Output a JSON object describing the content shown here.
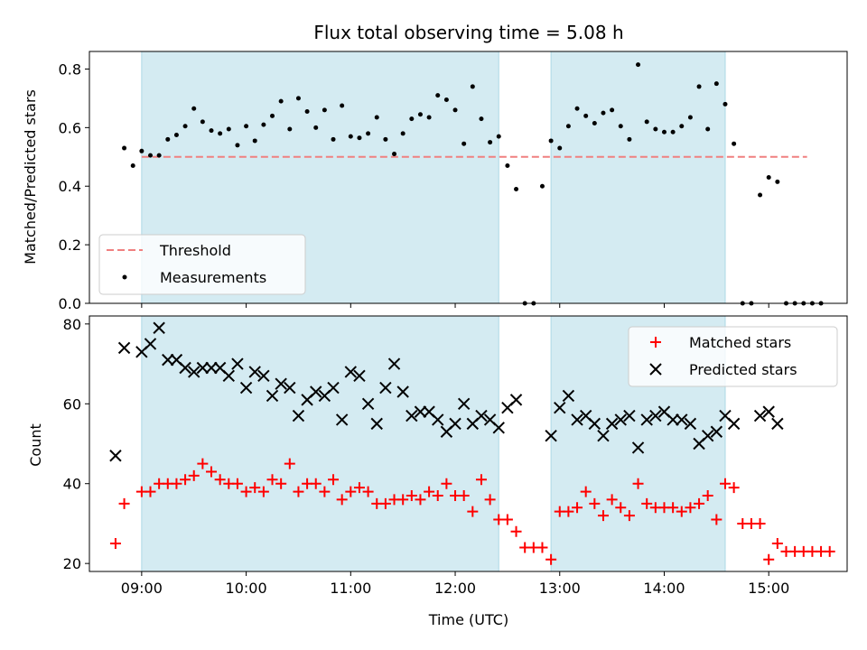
{
  "chart_data": [
    {
      "type": "scatter",
      "title": "Flux total observing time = 5.08 h",
      "xlabel": "",
      "ylabel": "Matched/Predicted stars",
      "xlim": [
        "08:30",
        "15:45"
      ],
      "ylim": [
        0,
        0.86
      ],
      "yticks": [
        0.0,
        0.2,
        0.4,
        0.6,
        0.8
      ],
      "yticklabels": [
        "0.0",
        "0.2",
        "0.4",
        "0.6",
        "0.8"
      ],
      "xticks": [
        "09:00",
        "10:00",
        "11:00",
        "12:00",
        "13:00",
        "14:00",
        "15:00"
      ],
      "shaded_intervals": [
        [
          "09:00",
          "12:25"
        ],
        [
          "12:55",
          "14:35"
        ]
      ],
      "shade_color": "#add8e6",
      "threshold": {
        "value": 0.5,
        "x_range": [
          "09:00",
          "15:22"
        ],
        "color": "#f08080"
      },
      "legend": {
        "placement": "lower-left",
        "entries": [
          "Threshold",
          "Measurements"
        ]
      },
      "series": [
        {
          "name": "Measurements",
          "color": "#000000",
          "points": [
            [
              "08:50",
              0.53
            ],
            [
              "08:55",
              0.47
            ],
            [
              "09:00",
              0.52
            ],
            [
              "09:05",
              0.505
            ],
            [
              "09:10",
              0.505
            ],
            [
              "09:15",
              0.56
            ],
            [
              "09:20",
              0.575
            ],
            [
              "09:25",
              0.605
            ],
            [
              "09:30",
              0.665
            ],
            [
              "09:35",
              0.62
            ],
            [
              "09:40",
              0.59
            ],
            [
              "09:45",
              0.58
            ],
            [
              "09:50",
              0.595
            ],
            [
              "09:55",
              0.54
            ],
            [
              "10:00",
              0.605
            ],
            [
              "10:05",
              0.555
            ],
            [
              "10:10",
              0.61
            ],
            [
              "10:15",
              0.64
            ],
            [
              "10:20",
              0.69
            ],
            [
              "10:25",
              0.595
            ],
            [
              "10:30",
              0.7
            ],
            [
              "10:35",
              0.655
            ],
            [
              "10:40",
              0.6
            ],
            [
              "10:45",
              0.66
            ],
            [
              "10:50",
              0.56
            ],
            [
              "10:55",
              0.675
            ],
            [
              "11:00",
              0.57
            ],
            [
              "11:05",
              0.565
            ],
            [
              "11:10",
              0.58
            ],
            [
              "11:15",
              0.635
            ],
            [
              "11:20",
              0.56
            ],
            [
              "11:25",
              0.51
            ],
            [
              "11:30",
              0.58
            ],
            [
              "11:35",
              0.63
            ],
            [
              "11:40",
              0.645
            ],
            [
              "11:45",
              0.635
            ],
            [
              "11:50",
              0.71
            ],
            [
              "11:55",
              0.695
            ],
            [
              "12:00",
              0.66
            ],
            [
              "12:05",
              0.545
            ],
            [
              "12:10",
              0.74
            ],
            [
              "12:15",
              0.63
            ],
            [
              "12:20",
              0.55
            ],
            [
              "12:25",
              0.57
            ],
            [
              "12:30",
              0.47
            ],
            [
              "12:35",
              0.39
            ],
            [
              "12:40",
              0.0
            ],
            [
              "12:45",
              0.0
            ],
            [
              "12:50",
              0.4
            ],
            [
              "12:55",
              0.555
            ],
            [
              "13:00",
              0.53
            ],
            [
              "13:05",
              0.605
            ],
            [
              "13:10",
              0.665
            ],
            [
              "13:15",
              0.64
            ],
            [
              "13:20",
              0.615
            ],
            [
              "13:25",
              0.65
            ],
            [
              "13:30",
              0.66
            ],
            [
              "13:35",
              0.605
            ],
            [
              "13:40",
              0.56
            ],
            [
              "13:45",
              0.815
            ],
            [
              "13:50",
              0.62
            ],
            [
              "13:55",
              0.595
            ],
            [
              "14:00",
              0.585
            ],
            [
              "14:05",
              0.585
            ],
            [
              "14:10",
              0.605
            ],
            [
              "14:15",
              0.635
            ],
            [
              "14:20",
              0.74
            ],
            [
              "14:25",
              0.595
            ],
            [
              "14:30",
              0.75
            ],
            [
              "14:35",
              0.68
            ],
            [
              "14:40",
              0.545
            ],
            [
              "14:45",
              0.0
            ],
            [
              "14:50",
              0.0
            ],
            [
              "14:55",
              0.37
            ],
            [
              "15:00",
              0.43
            ],
            [
              "15:05",
              0.415
            ],
            [
              "15:10",
              0.0
            ],
            [
              "15:15",
              0.0
            ],
            [
              "15:20",
              0.0
            ],
            [
              "15:25",
              0.0
            ],
            [
              "15:30",
              0.0
            ]
          ]
        }
      ]
    },
    {
      "type": "scatter",
      "title": "",
      "xlabel": "Time (UTC)",
      "ylabel": "Count",
      "xlim": [
        "08:30",
        "15:45"
      ],
      "ylim": [
        18,
        82
      ],
      "yticks": [
        20,
        40,
        60,
        80
      ],
      "yticklabels": [
        "20",
        "40",
        "60",
        "80"
      ],
      "xticks": [
        "09:00",
        "10:00",
        "11:00",
        "12:00",
        "13:00",
        "14:00",
        "15:00"
      ],
      "xticklabels": [
        "09:00",
        "10:00",
        "11:00",
        "12:00",
        "13:00",
        "14:00",
        "15:00"
      ],
      "shaded_intervals": [
        [
          "09:00",
          "12:25"
        ],
        [
          "12:55",
          "14:35"
        ]
      ],
      "shade_color": "#add8e6",
      "legend": {
        "placement": "top-right",
        "entries": [
          "Matched stars",
          "Predicted stars"
        ]
      },
      "series": [
        {
          "name": "Matched stars",
          "marker": "plus",
          "color": "#ff0000",
          "points": [
            [
              "08:45",
              25
            ],
            [
              "08:50",
              35
            ],
            [
              "09:00",
              38
            ],
            [
              "09:05",
              38
            ],
            [
              "09:10",
              40
            ],
            [
              "09:15",
              40
            ],
            [
              "09:20",
              40
            ],
            [
              "09:25",
              41
            ],
            [
              "09:30",
              42
            ],
            [
              "09:35",
              45
            ],
            [
              "09:40",
              43
            ],
            [
              "09:45",
              41
            ],
            [
              "09:50",
              40
            ],
            [
              "09:55",
              40
            ],
            [
              "10:00",
              38
            ],
            [
              "10:05",
              39
            ],
            [
              "10:10",
              38
            ],
            [
              "10:15",
              41
            ],
            [
              "10:20",
              40
            ],
            [
              "10:25",
              45
            ],
            [
              "10:30",
              38
            ],
            [
              "10:35",
              40
            ],
            [
              "10:40",
              40
            ],
            [
              "10:45",
              38
            ],
            [
              "10:50",
              41
            ],
            [
              "10:55",
              36
            ],
            [
              "11:00",
              38
            ],
            [
              "11:05",
              39
            ],
            [
              "11:10",
              38
            ],
            [
              "11:15",
              35
            ],
            [
              "11:20",
              35
            ],
            [
              "11:25",
              36
            ],
            [
              "11:30",
              36
            ],
            [
              "11:35",
              37
            ],
            [
              "11:40",
              36
            ],
            [
              "11:45",
              38
            ],
            [
              "11:50",
              37
            ],
            [
              "11:55",
              40
            ],
            [
              "12:00",
              37
            ],
            [
              "12:05",
              37
            ],
            [
              "12:10",
              33
            ],
            [
              "12:15",
              41
            ],
            [
              "12:20",
              36
            ],
            [
              "12:25",
              31
            ],
            [
              "12:30",
              31
            ],
            [
              "12:35",
              28
            ],
            [
              "12:40",
              24
            ],
            [
              "12:45",
              24
            ],
            [
              "12:50",
              24
            ],
            [
              "12:55",
              21
            ],
            [
              "13:00",
              33
            ],
            [
              "13:05",
              33
            ],
            [
              "13:10",
              34
            ],
            [
              "13:15",
              38
            ],
            [
              "13:20",
              35
            ],
            [
              "13:25",
              32
            ],
            [
              "13:30",
              36
            ],
            [
              "13:35",
              34
            ],
            [
              "13:40",
              32
            ],
            [
              "13:45",
              40
            ],
            [
              "13:50",
              35
            ],
            [
              "13:55",
              34
            ],
            [
              "14:00",
              34
            ],
            [
              "14:05",
              34
            ],
            [
              "14:10",
              33
            ],
            [
              "14:15",
              34
            ],
            [
              "14:20",
              35
            ],
            [
              "14:25",
              37
            ],
            [
              "14:30",
              31
            ],
            [
              "14:35",
              40
            ],
            [
              "14:40",
              39
            ],
            [
              "14:45",
              30
            ],
            [
              "14:50",
              30
            ],
            [
              "14:55",
              30
            ],
            [
              "15:00",
              21
            ],
            [
              "15:05",
              25
            ],
            [
              "15:10",
              23
            ],
            [
              "15:15",
              23
            ],
            [
              "15:20",
              23
            ],
            [
              "15:25",
              23
            ],
            [
              "15:30",
              23
            ],
            [
              "15:35",
              23
            ]
          ]
        },
        {
          "name": "Predicted stars",
          "marker": "x",
          "color": "#000000",
          "points": [
            [
              "08:45",
              47
            ],
            [
              "08:50",
              74
            ],
            [
              "09:00",
              73
            ],
            [
              "09:05",
              75
            ],
            [
              "09:10",
              79
            ],
            [
              "09:15",
              71
            ],
            [
              "09:20",
              71
            ],
            [
              "09:25",
              69
            ],
            [
              "09:30",
              68
            ],
            [
              "09:35",
              69
            ],
            [
              "09:40",
              69
            ],
            [
              "09:45",
              69
            ],
            [
              "09:50",
              67
            ],
            [
              "09:55",
              70
            ],
            [
              "10:00",
              64
            ],
            [
              "10:05",
              68
            ],
            [
              "10:10",
              67
            ],
            [
              "10:15",
              62
            ],
            [
              "10:20",
              65
            ],
            [
              "10:25",
              64
            ],
            [
              "10:30",
              57
            ],
            [
              "10:35",
              61
            ],
            [
              "10:40",
              63
            ],
            [
              "10:45",
              62
            ],
            [
              "10:50",
              64
            ],
            [
              "10:55",
              56
            ],
            [
              "11:00",
              68
            ],
            [
              "11:05",
              67
            ],
            [
              "11:10",
              60
            ],
            [
              "11:15",
              55
            ],
            [
              "11:20",
              64
            ],
            [
              "11:25",
              70
            ],
            [
              "11:30",
              63
            ],
            [
              "11:35",
              57
            ],
            [
              "11:40",
              58
            ],
            [
              "11:45",
              58
            ],
            [
              "11:50",
              56
            ],
            [
              "11:55",
              53
            ],
            [
              "12:00",
              55
            ],
            [
              "12:05",
              60
            ],
            [
              "12:10",
              55
            ],
            [
              "12:15",
              57
            ],
            [
              "12:20",
              56
            ],
            [
              "12:25",
              54
            ],
            [
              "12:30",
              59
            ],
            [
              "12:35",
              61
            ],
            [
              "12:55",
              52
            ],
            [
              "13:00",
              59
            ],
            [
              "13:05",
              62
            ],
            [
              "13:10",
              56
            ],
            [
              "13:15",
              57
            ],
            [
              "13:20",
              55
            ],
            [
              "13:25",
              52
            ],
            [
              "13:30",
              55
            ],
            [
              "13:35",
              56
            ],
            [
              "13:40",
              57
            ],
            [
              "13:45",
              49
            ],
            [
              "13:50",
              56
            ],
            [
              "13:55",
              57
            ],
            [
              "14:00",
              58
            ],
            [
              "14:05",
              56
            ],
            [
              "14:10",
              56
            ],
            [
              "14:15",
              55
            ],
            [
              "14:20",
              50
            ],
            [
              "14:25",
              52
            ],
            [
              "14:30",
              53
            ],
            [
              "14:35",
              57
            ],
            [
              "14:40",
              55
            ],
            [
              "14:55",
              57
            ],
            [
              "15:00",
              58
            ],
            [
              "15:05",
              55
            ]
          ]
        }
      ]
    }
  ]
}
